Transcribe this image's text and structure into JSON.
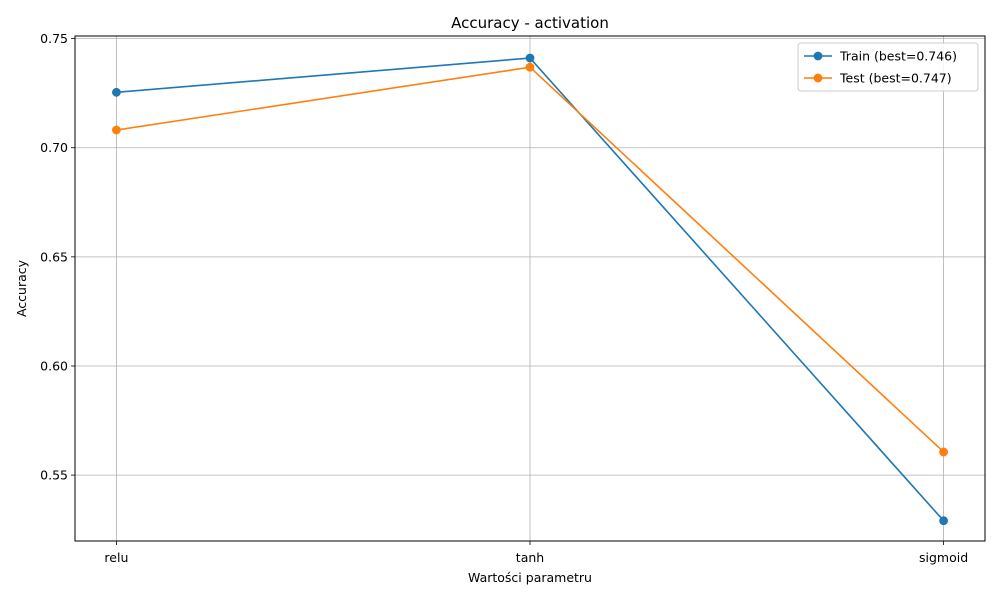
{
  "chart_data": {
    "type": "line",
    "title": "Accuracy - activation",
    "xlabel": "Wartości parametru",
    "ylabel": "Accuracy",
    "categories": [
      "relu",
      "tanh",
      "sigmoid"
    ],
    "ylim": [
      0.5198,
      0.7512
    ],
    "yticks": [
      "0.55",
      "0.60",
      "0.65",
      "0.70",
      "0.75"
    ],
    "grid": true,
    "legend_position": "top-right",
    "series": [
      {
        "name": "Train (best=0.746)",
        "color": "#1f77b4",
        "values": [
          0.7254,
          0.7411,
          0.5291
        ]
      },
      {
        "name": "Test (best=0.747)",
        "color": "#ff7f0e",
        "values": [
          0.7081,
          0.7369,
          0.5606
        ]
      }
    ]
  }
}
